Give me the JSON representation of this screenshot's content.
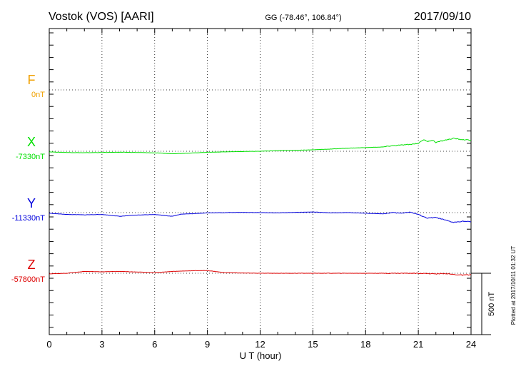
{
  "header": {
    "station": "Vostok (VOS)  [AARI]",
    "coords": "GG (-78.46°, 106.84°)",
    "date": "2017/09/10"
  },
  "footer_note": "Plotted at 2017/10/11 01:32 UT",
  "scale_label": "500 nT",
  "chart_data": {
    "type": "line",
    "xlabel": "U T (hour)",
    "xlim": [
      0,
      24
    ],
    "xticks": [
      "0",
      "3",
      "6",
      "9",
      "12",
      "15",
      "18",
      "21",
      "24"
    ],
    "y_unit": "nT",
    "scale_bar_nT": 500,
    "grid": true,
    "series": [
      {
        "name": "F",
        "baseline_label": "0nT",
        "baseline": 0,
        "color": "#f0a000",
        "points": []
      },
      {
        "name": "X",
        "baseline_label": "-7330nT",
        "baseline": -7330,
        "color": "#00e000",
        "points": [
          [
            0,
            -7335
          ],
          [
            1,
            -7340
          ],
          [
            2,
            -7342
          ],
          [
            3,
            -7340
          ],
          [
            4,
            -7338
          ],
          [
            5,
            -7340
          ],
          [
            6,
            -7343
          ],
          [
            7,
            -7350
          ],
          [
            8,
            -7345
          ],
          [
            9,
            -7338
          ],
          [
            10,
            -7335
          ],
          [
            11,
            -7332
          ],
          [
            12,
            -7330
          ],
          [
            13,
            -7325
          ],
          [
            14,
            -7322
          ],
          [
            15,
            -7318
          ],
          [
            16,
            -7312
          ],
          [
            17,
            -7305
          ],
          [
            18,
            -7300
          ],
          [
            19,
            -7295
          ],
          [
            19.5,
            -7285
          ],
          [
            20,
            -7280
          ],
          [
            20.5,
            -7275
          ],
          [
            21,
            -7265
          ],
          [
            21.3,
            -7235
          ],
          [
            21.5,
            -7250
          ],
          [
            21.8,
            -7240
          ],
          [
            22,
            -7258
          ],
          [
            22.5,
            -7240
          ],
          [
            23,
            -7225
          ],
          [
            23.5,
            -7235
          ],
          [
            24,
            -7240
          ]
        ]
      },
      {
        "name": "Y",
        "baseline_label": "-11330nT",
        "baseline": -11330,
        "color": "#0000dd",
        "points": [
          [
            0,
            -11335
          ],
          [
            1,
            -11345
          ],
          [
            2,
            -11348
          ],
          [
            3,
            -11345
          ],
          [
            4,
            -11360
          ],
          [
            5,
            -11350
          ],
          [
            6,
            -11345
          ],
          [
            7,
            -11360
          ],
          [
            7.5,
            -11342
          ],
          [
            8,
            -11340
          ],
          [
            9,
            -11332
          ],
          [
            10,
            -11330
          ],
          [
            11,
            -11328
          ],
          [
            12,
            -11330
          ],
          [
            13,
            -11332
          ],
          [
            14,
            -11328
          ],
          [
            15,
            -11325
          ],
          [
            16,
            -11332
          ],
          [
            17,
            -11330
          ],
          [
            18,
            -11335
          ],
          [
            19,
            -11340
          ],
          [
            19.5,
            -11330
          ],
          [
            20,
            -11335
          ],
          [
            20.5,
            -11325
          ],
          [
            21,
            -11345
          ],
          [
            21.5,
            -11375
          ],
          [
            22,
            -11370
          ],
          [
            22.5,
            -11390
          ],
          [
            23,
            -11410
          ],
          [
            23.5,
            -11400
          ],
          [
            24,
            -11405
          ]
        ]
      },
      {
        "name": "Z",
        "baseline_label": "-57800nT",
        "baseline": -57800,
        "color": "#dd0000",
        "points": [
          [
            0,
            -57805
          ],
          [
            1,
            -57800
          ],
          [
            2,
            -57785
          ],
          [
            3,
            -57788
          ],
          [
            4,
            -57785
          ],
          [
            5,
            -57790
          ],
          [
            6,
            -57795
          ],
          [
            7,
            -57785
          ],
          [
            8,
            -57780
          ],
          [
            9,
            -57778
          ],
          [
            10,
            -57795
          ],
          [
            11,
            -57798
          ],
          [
            12,
            -57800
          ],
          [
            13,
            -57800
          ],
          [
            14,
            -57800
          ],
          [
            15,
            -57800
          ],
          [
            16,
            -57800
          ],
          [
            17,
            -57800
          ],
          [
            18,
            -57800
          ],
          [
            19,
            -57800
          ],
          [
            20,
            -57800
          ],
          [
            21,
            -57800
          ],
          [
            22,
            -57805
          ],
          [
            22.5,
            -57802
          ],
          [
            23,
            -57810
          ],
          [
            23.5,
            -57815
          ],
          [
            24,
            -57812
          ]
        ]
      }
    ]
  }
}
